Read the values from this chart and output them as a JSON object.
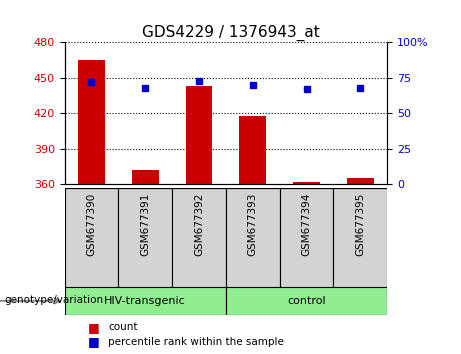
{
  "title": "GDS4229 / 1376943_at",
  "categories": [
    "GSM677390",
    "GSM677391",
    "GSM677392",
    "GSM677393",
    "GSM677394",
    "GSM677395"
  ],
  "bar_values": [
    465,
    372,
    443,
    418,
    362,
    365
  ],
  "percentile_values": [
    72,
    68,
    73,
    70,
    67,
    68
  ],
  "bar_color": "#cc0000",
  "percentile_color": "#0000cc",
  "ylim_left": [
    360,
    480
  ],
  "ylim_right": [
    0,
    100
  ],
  "yticks_left": [
    360,
    390,
    420,
    450,
    480
  ],
  "yticks_right": [
    0,
    25,
    50,
    75,
    100
  ],
  "ytick_labels_right": [
    "0",
    "25",
    "50",
    "75",
    "100%"
  ],
  "group1_label": "HIV-transgenic",
  "group2_label": "control",
  "group_label": "genotype/variation",
  "legend_count_label": "count",
  "legend_percentile_label": "percentile rank within the sample",
  "tick_label_color_left": "#cc0000",
  "tick_label_color_right": "#0000cc",
  "bar_width": 0.5,
  "title_fontsize": 11,
  "label_fontsize": 8,
  "green_color": "#90ee90",
  "gray_color": "#d3d3d3"
}
